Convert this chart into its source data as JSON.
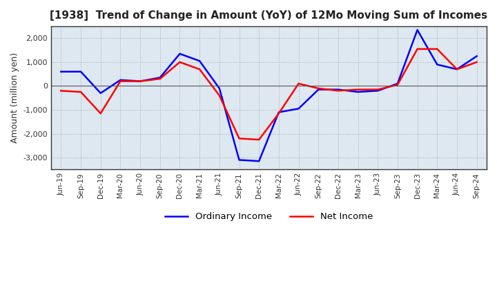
{
  "title": "[1938]  Trend of Change in Amount (YoY) of 12Mo Moving Sum of Incomes",
  "ylabel": "Amount (million yen)",
  "ylim": [
    -3500,
    2500
  ],
  "yticks": [
    -3000,
    -2000,
    -1000,
    0,
    1000,
    2000
  ],
  "background_color": "#ffffff",
  "plot_bg_color": "#dde8f0",
  "grid_color": "#aaaaaa",
  "x_labels": [
    "Jun-19",
    "Sep-19",
    "Dec-19",
    "Mar-20",
    "Jun-20",
    "Sep-20",
    "Dec-20",
    "Mar-21",
    "Jun-21",
    "Sep-21",
    "Dec-21",
    "Mar-22",
    "Jun-22",
    "Sep-22",
    "Dec-22",
    "Mar-23",
    "Jun-23",
    "Sep-23",
    "Dec-23",
    "Mar-24",
    "Jun-24",
    "Sep-24"
  ],
  "ordinary_income": [
    600,
    600,
    -300,
    250,
    200,
    350,
    1350,
    1050,
    -100,
    -3100,
    -3150,
    -1100,
    -950,
    -150,
    -150,
    -250,
    -200,
    100,
    2350,
    900,
    700,
    1250
  ],
  "net_income": [
    -200,
    -250,
    -1150,
    200,
    200,
    300,
    1000,
    700,
    -400,
    -2200,
    -2250,
    -1150,
    100,
    -100,
    -200,
    -150,
    -150,
    50,
    1550,
    1550,
    700,
    1000
  ],
  "ordinary_color": "#0000ff",
  "net_color": "#ff0000",
  "line_width": 1.8
}
